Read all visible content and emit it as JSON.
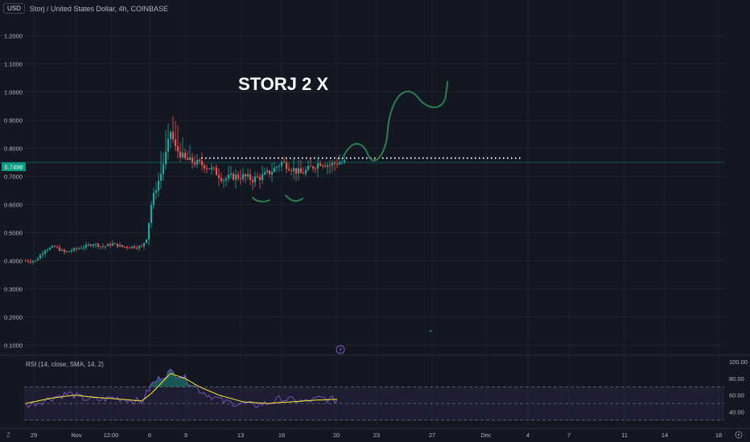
{
  "header": {
    "currency_button": "USD",
    "title": "Storj / United States Dollar, 4h, COINBASE"
  },
  "annotation": {
    "headline": "STORJ 2 X"
  },
  "price_label": "0.7498",
  "rsi_title": "RSI (14, close, SMA, 14, 2)",
  "corner_left": "Z",
  "colors": {
    "background": "#131722",
    "up": "#26a69a",
    "down": "#ef5350",
    "drawing": "#2e7d4f",
    "rsi_line": "#7e57c2",
    "rsi_sma": "#ffeb3b"
  },
  "chart_data": {
    "type": "candlestick",
    "y_axis": {
      "ticks": [
        "1.2000",
        "1.1000",
        "1.0000",
        "0.9000",
        "0.8000",
        "0.7000",
        "0.6000",
        "0.5000",
        "0.4000",
        "0.3000",
        "0.2000",
        "0.1000"
      ],
      "range": [
        0.07,
        1.27
      ]
    },
    "x_axis": {
      "ticks": [
        "29",
        "Nov",
        "12:00",
        "6",
        "9",
        "13",
        "16",
        "20",
        "23",
        "27",
        "Dec",
        "4",
        "7",
        "11",
        "14",
        "18"
      ]
    },
    "current_price": 0.7498,
    "resistance_level": 0.765,
    "candle_count": 133,
    "path_points_index_close": [
      [
        0,
        0.4
      ],
      [
        4,
        0.4
      ],
      [
        8,
        0.44
      ],
      [
        12,
        0.45
      ],
      [
        16,
        0.43
      ],
      [
        20,
        0.44
      ],
      [
        24,
        0.45
      ],
      [
        28,
        0.46
      ],
      [
        32,
        0.45
      ],
      [
        36,
        0.46
      ],
      [
        40,
        0.45
      ],
      [
        44,
        0.45
      ],
      [
        48,
        0.45
      ],
      [
        50,
        0.48
      ],
      [
        52,
        0.6
      ],
      [
        54,
        0.66
      ],
      [
        56,
        0.71
      ],
      [
        58,
        0.78
      ],
      [
        60,
        0.86
      ],
      [
        62,
        0.8
      ],
      [
        64,
        0.78
      ],
      [
        66,
        0.76
      ],
      [
        70,
        0.75
      ],
      [
        74,
        0.74
      ],
      [
        78,
        0.72
      ],
      [
        82,
        0.69
      ],
      [
        86,
        0.7
      ],
      [
        90,
        0.7
      ],
      [
        94,
        0.69
      ],
      [
        98,
        0.7
      ],
      [
        102,
        0.72
      ],
      [
        106,
        0.75
      ],
      [
        110,
        0.73
      ],
      [
        114,
        0.71
      ],
      [
        118,
        0.73
      ],
      [
        122,
        0.75
      ],
      [
        126,
        0.74
      ],
      [
        129,
        0.75
      ]
    ],
    "rsi": {
      "name": "RSI (14, close, SMA, 14, 2)",
      "ticks": [
        "100.00",
        "80.00",
        "60.00",
        "40.00"
      ],
      "range": [
        25,
        105
      ],
      "bands": [
        30,
        50,
        70
      ],
      "points_index_value": [
        [
          0,
          48
        ],
        [
          6,
          52
        ],
        [
          12,
          58
        ],
        [
          18,
          62
        ],
        [
          24,
          56
        ],
        [
          30,
          54
        ],
        [
          36,
          57
        ],
        [
          42,
          55
        ],
        [
          48,
          52
        ],
        [
          52,
          72
        ],
        [
          56,
          82
        ],
        [
          60,
          88
        ],
        [
          64,
          84
        ],
        [
          68,
          76
        ],
        [
          72,
          66
        ],
        [
          76,
          60
        ],
        [
          82,
          52
        ],
        [
          88,
          50
        ],
        [
          94,
          48
        ],
        [
          100,
          50
        ],
        [
          106,
          56
        ],
        [
          110,
          54
        ],
        [
          116,
          52
        ],
        [
          122,
          56
        ],
        [
          129,
          54
        ]
      ],
      "sma_points_index_value": [
        [
          0,
          50
        ],
        [
          10,
          56
        ],
        [
          20,
          60
        ],
        [
          30,
          57
        ],
        [
          40,
          55
        ],
        [
          48,
          53
        ],
        [
          52,
          62
        ],
        [
          56,
          74
        ],
        [
          60,
          86
        ],
        [
          66,
          80
        ],
        [
          72,
          70
        ],
        [
          80,
          60
        ],
        [
          90,
          52
        ],
        [
          100,
          50
        ],
        [
          110,
          52
        ],
        [
          120,
          54
        ],
        [
          129,
          55
        ]
      ]
    }
  }
}
